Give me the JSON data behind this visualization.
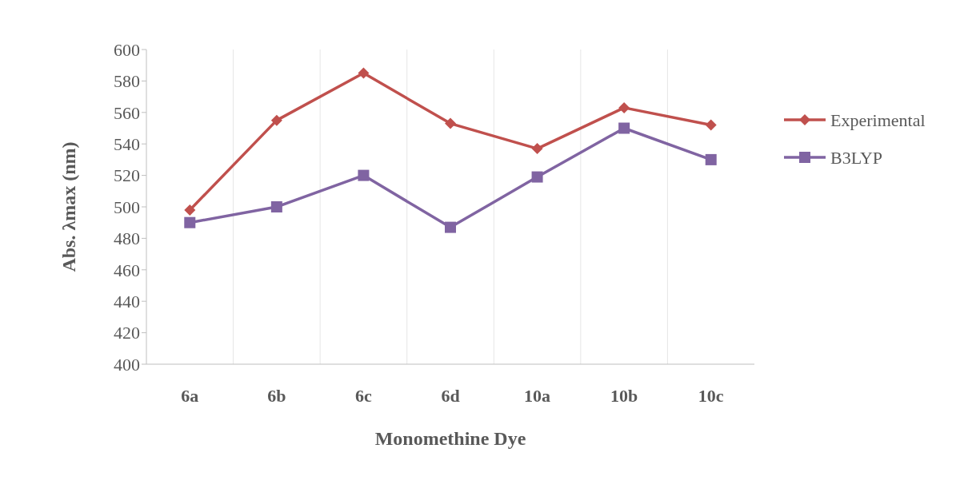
{
  "chart_data": {
    "type": "line",
    "xlabel": "Monomethine Dye",
    "ylabel": "Abs. λmax (nm)",
    "categories": [
      "6a",
      "6b",
      "6c",
      "6d",
      "10a",
      "10b",
      "10c"
    ],
    "series": [
      {
        "name": "Experimental",
        "color": "#c0504d",
        "marker": "diamond",
        "values": [
          498,
          555,
          585,
          553,
          537,
          563,
          552
        ]
      },
      {
        "name": "B3LYP",
        "color": "#8064a2",
        "marker": "square",
        "values": [
          490,
          500,
          520,
          487,
          519,
          550,
          530
        ]
      }
    ],
    "ylim": [
      400,
      600
    ],
    "yticks": [
      400,
      420,
      440,
      460,
      480,
      500,
      520,
      540,
      560,
      580,
      600
    ],
    "grid": "x",
    "legend": "right"
  }
}
